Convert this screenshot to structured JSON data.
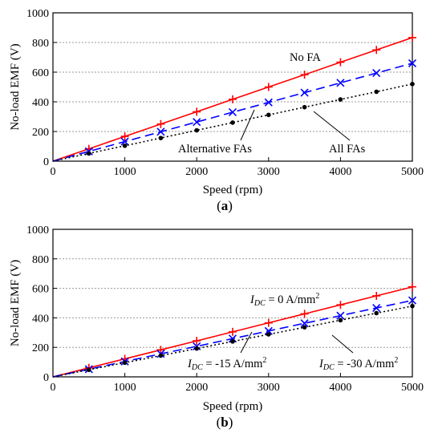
{
  "chart_data": [
    {
      "type": "line",
      "panel_label": "(a)",
      "xlabel": "Speed (rpm)",
      "ylabel": "No-load EMF (V)",
      "xlim": [
        0,
        5000
      ],
      "ylim": [
        0,
        1000
      ],
      "xticks": [
        0,
        1000,
        2000,
        3000,
        4000,
        5000
      ],
      "yticks": [
        0,
        200,
        400,
        600,
        800,
        1000
      ],
      "grid": "horizontal dotted",
      "x": [
        0,
        500,
        1000,
        1500,
        2000,
        2500,
        3000,
        3500,
        4000,
        4500,
        5000
      ],
      "series": [
        {
          "name": "No FA",
          "color": "#ff0000",
          "line": "solid",
          "marker": "plus",
          "values": [
            0,
            83,
            167,
            250,
            333,
            417,
            500,
            583,
            667,
            750,
            833
          ]
        },
        {
          "name": "Alternative FAs",
          "color": "#0000ff",
          "line": "dashed",
          "marker": "x",
          "values": [
            0,
            66,
            132,
            198,
            264,
            330,
            396,
            462,
            528,
            594,
            660
          ]
        },
        {
          "name": "All FAs",
          "color": "#000000",
          "line": "dotted",
          "marker": "dot",
          "values": [
            0,
            52,
            104,
            156,
            208,
            260,
            312,
            364,
            416,
            468,
            520
          ]
        }
      ]
    },
    {
      "type": "line",
      "panel_label": "(b)",
      "xlabel": "Speed (rpm)",
      "ylabel": "No-load EMF (V)",
      "xlim": [
        0,
        5000
      ],
      "ylim": [
        0,
        1000
      ],
      "xticks": [
        0,
        1000,
        2000,
        3000,
        4000,
        5000
      ],
      "yticks": [
        0,
        200,
        400,
        600,
        800,
        1000
      ],
      "grid": "horizontal dotted",
      "x": [
        0,
        500,
        1000,
        1500,
        2000,
        2500,
        3000,
        3500,
        4000,
        4500,
        5000
      ],
      "series": [
        {
          "name": "I_DC = 0 A/mm²",
          "color": "#ff0000",
          "line": "solid",
          "marker": "plus",
          "values": [
            0,
            61,
            122,
            183,
            244,
            305,
            366,
            427,
            488,
            549,
            610
          ]
        },
        {
          "name": "I_DC = -15 A/mm²",
          "color": "#0000ff",
          "line": "dashed",
          "marker": "x",
          "values": [
            0,
            52,
            104,
            156,
            207,
            259,
            311,
            363,
            415,
            467,
            518
          ]
        },
        {
          "name": "I_DC = -30 A/mm²",
          "color": "#000000",
          "line": "dotted",
          "marker": "dot",
          "values": [
            0,
            48,
            96,
            144,
            192,
            240,
            288,
            336,
            384,
            432,
            480
          ]
        }
      ]
    }
  ],
  "annotations": [
    {
      "text": "No FA"
    },
    {
      "text": "Alternative FAs"
    },
    {
      "text": "All FAs"
    },
    {
      "var": "I",
      "sub": "DC",
      "rest": " = 0 A/mm",
      "sup": "2"
    },
    {
      "var": "I",
      "sub": "DC",
      "rest": " = -15 A/mm",
      "sup": "2"
    },
    {
      "var": "I",
      "sub": "DC",
      "rest": " = -30 A/mm",
      "sup": "2"
    }
  ]
}
